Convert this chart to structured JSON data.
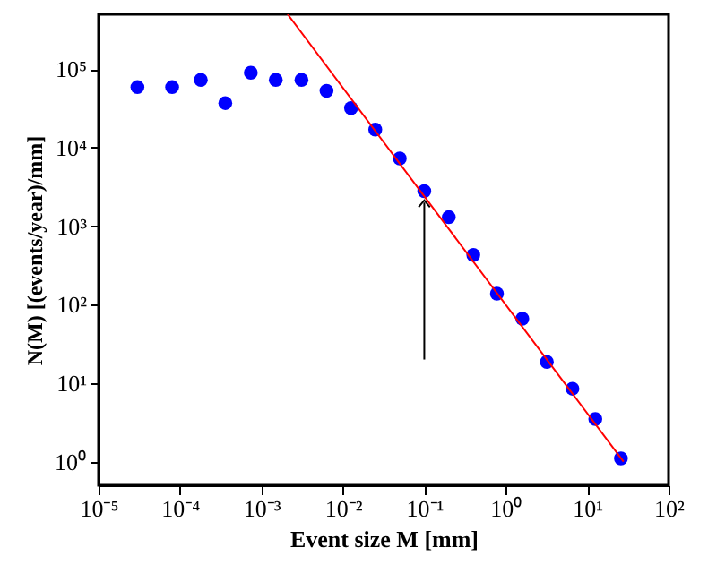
{
  "chart_data": {
    "type": "scatter",
    "xlabel": "Event size M [mm]",
    "ylabel": "N(M) [(events/year)/mm]",
    "log": "xy",
    "grid": false,
    "xlim": [
      1e-05,
      100
    ],
    "ylim": [
      0.5,
      500000
    ],
    "xticks": [
      {
        "value": 1e-05,
        "label": "10⁻⁵"
      },
      {
        "value": 0.0001,
        "label": "10⁻⁴"
      },
      {
        "value": 0.001,
        "label": "10⁻³"
      },
      {
        "value": 0.01,
        "label": "10⁻²"
      },
      {
        "value": 0.1,
        "label": "10⁻¹"
      },
      {
        "value": 1,
        "label": "10⁰"
      },
      {
        "value": 10,
        "label": "10¹"
      },
      {
        "value": 100,
        "label": "10²"
      }
    ],
    "yticks": [
      {
        "value": 1,
        "label": "10⁰"
      },
      {
        "value": 10,
        "label": "10¹"
      },
      {
        "value": 100,
        "label": "10²"
      },
      {
        "value": 1000,
        "label": "10³"
      },
      {
        "value": 10000,
        "label": "10⁴"
      },
      {
        "value": 100000,
        "label": "10⁵"
      }
    ],
    "series": [
      {
        "color": "#0000ff",
        "marker": "circle",
        "x": [
          3e-05,
          8e-05,
          0.00018,
          0.00036,
          0.00074,
          0.0015,
          0.0031,
          0.0063,
          0.0126,
          0.025,
          0.05,
          0.1,
          0.2,
          0.4,
          0.78,
          1.6,
          3.2,
          6.6,
          12.6,
          26
        ],
        "values": [
          59000,
          59000,
          73000,
          37000,
          90000,
          73000,
          73000,
          53000,
          32000,
          17000,
          7300,
          2800,
          1300,
          430,
          138,
          66,
          18.6,
          8.5,
          3.5,
          1.1
        ]
      },
      {
        "type": "line",
        "color": "#ff0000",
        "line_style": "solid",
        "marker": "none",
        "x": [
          0.0021,
          28
        ],
        "values": [
          500000,
          1
        ]
      },
      {
        "type": "line",
        "color": "#000000",
        "line_style": "solid",
        "x": [
          0.1,
          0.1
        ],
        "values": [
          20,
          2000
        ]
      }
    ]
  }
}
